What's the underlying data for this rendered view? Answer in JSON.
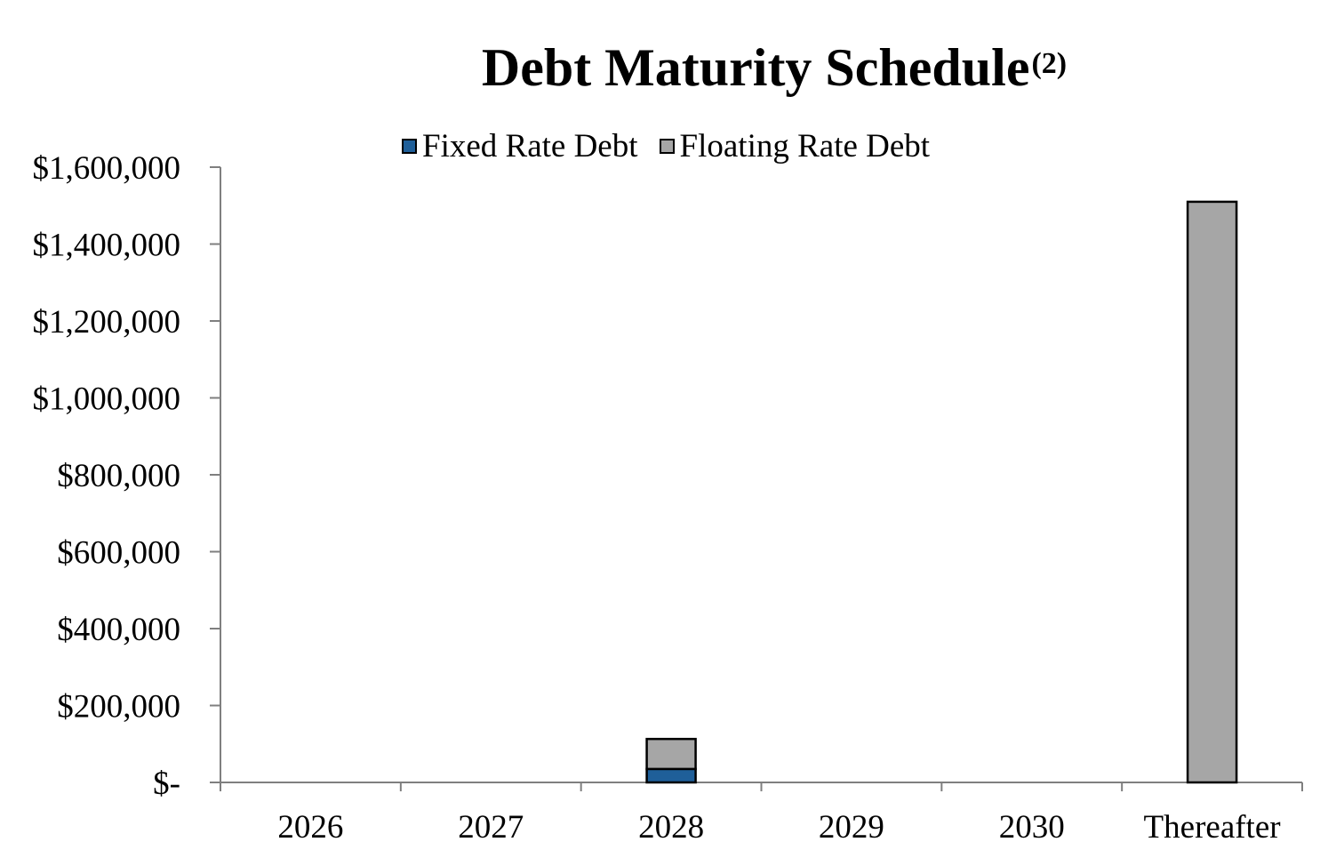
{
  "chart_data": {
    "type": "bar",
    "stacked": true,
    "title": "Debt Maturity Schedule",
    "title_superscript": "(2)",
    "xlabel": "",
    "ylabel": "",
    "categories": [
      "2026",
      "2027",
      "2028",
      "2029",
      "2030",
      "Thereafter"
    ],
    "series": [
      {
        "name": "Fixed Rate Debt",
        "color": "#1f5f99",
        "values": [
          0,
          0,
          35000,
          0,
          0,
          0
        ]
      },
      {
        "name": "Floating Rate Debt",
        "color": "#a6a6a6",
        "values": [
          0,
          0,
          78000,
          0,
          0,
          1510000
        ]
      }
    ],
    "ylim": [
      0,
      1600000
    ],
    "yticks": [
      0,
      200000,
      400000,
      600000,
      800000,
      1000000,
      1200000,
      1400000,
      1600000
    ],
    "ytick_labels": [
      "$-",
      "$200,000",
      "$400,000",
      "$600,000",
      "$800,000",
      "$1,000,000",
      "$1,200,000",
      "$1,400,000",
      "$1,600,000"
    ],
    "grid": false,
    "legend_position": "top"
  }
}
